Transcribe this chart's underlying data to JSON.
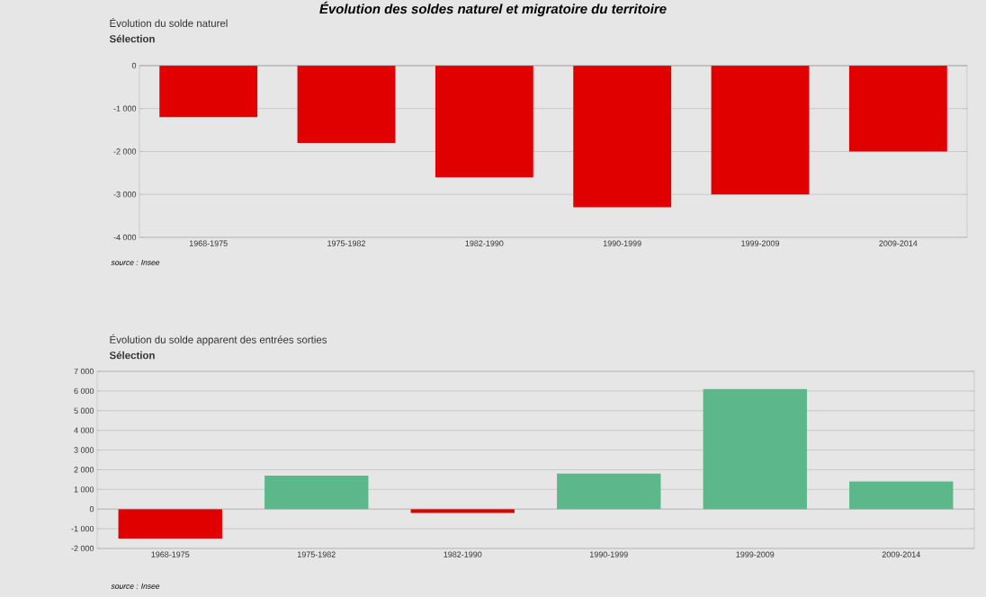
{
  "chart_data": [
    {
      "type": "bar",
      "title": "Évolution des soldes naturel et migratoire du territoire",
      "subtitle": "Évolution du solde naturel",
      "annotations": [
        "Sélection",
        "source : Insee"
      ],
      "categories": [
        "1968-1975",
        "1975-1982",
        "1982-1990",
        "1990-1999",
        "1999-2009",
        "2009-2014"
      ],
      "values": [
        -1200,
        -1800,
        -2600,
        -3300,
        -3000,
        -2000
      ],
      "colors": [
        "#e00000",
        "#e00000",
        "#e00000",
        "#e00000",
        "#e00000",
        "#e00000"
      ],
      "ylim": [
        -4000,
        0
      ],
      "yticks": [
        {
          "value": -4000,
          "label": "-4 000"
        },
        {
          "value": -3000,
          "label": "-3 000"
        },
        {
          "value": -2000,
          "label": "-2 000"
        },
        {
          "value": -1000,
          "label": "-1 000"
        },
        0
      ],
      "grid": "y"
    },
    {
      "type": "bar",
      "title": "Évolution du solde apparent des entrées sorties",
      "annotations": [
        "Sélection",
        "source : Insee"
      ],
      "categories": [
        "1968-1975",
        "1975-1982",
        "1982-1990",
        "1990-1999",
        "1999-2009",
        "2009-2014"
      ],
      "values": [
        -1500,
        1700,
        -200,
        1800,
        6100,
        1400
      ],
      "colors": [
        "#e00000",
        "#5cb88a",
        "#e00000",
        "#5cb88a",
        "#5cb88a",
        "#5cb88a"
      ],
      "ylim": [
        -2000,
        7000
      ],
      "yticks": [
        {
          "value": -2000,
          "label": "-2 000"
        },
        {
          "value": -1000,
          "label": "-1 000"
        },
        0,
        {
          "value": 1000,
          "label": "1 000"
        },
        {
          "value": 2000,
          "label": "2 000"
        },
        {
          "value": 3000,
          "label": "3 000"
        },
        {
          "value": 4000,
          "label": "4 000"
        },
        {
          "value": 5000,
          "label": "5 000"
        },
        {
          "value": 6000,
          "label": "6 000"
        },
        {
          "value": 7000,
          "label": "7 000"
        }
      ],
      "grid": "y"
    }
  ]
}
